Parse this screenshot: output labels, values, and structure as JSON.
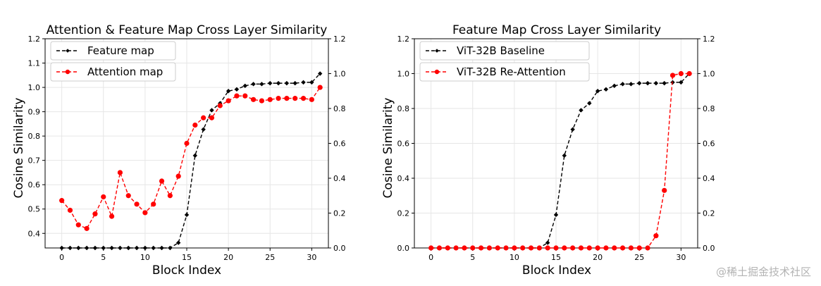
{
  "watermark": "@稀土掘金技术社区",
  "chart_data": [
    {
      "type": "line",
      "title": "Attention & Feature Map Cross Layer Similarity",
      "xlabel": "Block Index",
      "ylabel": "Cosine Similarity",
      "xlim": [
        -2,
        32
      ],
      "xticks": [
        0,
        5,
        10,
        15,
        20,
        25,
        30
      ],
      "ylim": [
        0.34,
        1.2
      ],
      "yticks": [
        "0.4",
        "0.5",
        "0.6",
        "0.7",
        "0.8",
        "0.9",
        "1.0",
        "1.1",
        "1.2"
      ],
      "y2lim": [
        0.0,
        1.2
      ],
      "y2ticks": [
        "0.0",
        "0.2",
        "0.4",
        "0.6",
        "0.8",
        "1.0",
        "1.2"
      ],
      "legend": "upper-left",
      "series": [
        {
          "name": "Feature map",
          "color": "#000000",
          "marker": "diamond",
          "axis": "right",
          "x": [
            0,
            1,
            2,
            3,
            4,
            5,
            6,
            7,
            8,
            9,
            10,
            11,
            12,
            13,
            14,
            15,
            16,
            17,
            18,
            19,
            20,
            21,
            22,
            23,
            24,
            25,
            26,
            27,
            28,
            29,
            30,
            31
          ],
          "values": [
            0,
            0,
            0,
            0,
            0,
            0,
            0,
            0,
            0,
            0,
            0,
            0,
            0,
            0,
            0.03,
            0.19,
            0.53,
            0.68,
            0.79,
            0.83,
            0.9,
            0.91,
            0.93,
            0.94,
            0.94,
            0.945,
            0.945,
            0.945,
            0.945,
            0.95,
            0.95,
            1.0
          ]
        },
        {
          "name": "Attention map",
          "color": "#ff0000",
          "marker": "circle",
          "axis": "left",
          "x": [
            0,
            1,
            2,
            3,
            4,
            5,
            6,
            7,
            8,
            9,
            10,
            11,
            12,
            13,
            14,
            15,
            16,
            17,
            18,
            19,
            20,
            21,
            22,
            23,
            24,
            25,
            26,
            27,
            28,
            29,
            30,
            31
          ],
          "values": [
            0.535,
            0.495,
            0.435,
            0.42,
            0.48,
            0.55,
            0.47,
            0.65,
            0.555,
            0.52,
            0.485,
            0.52,
            0.615,
            0.555,
            0.635,
            0.77,
            0.845,
            0.875,
            0.875,
            0.925,
            0.945,
            0.965,
            0.965,
            0.95,
            0.945,
            0.95,
            0.955,
            0.955,
            0.955,
            0.955,
            0.95,
            1.0
          ]
        }
      ]
    },
    {
      "type": "line",
      "title": "Feature Map Cross Layer Similarity",
      "xlabel": "Block Index",
      "ylabel": "Cosine Similarity",
      "xlim": [
        -2,
        32
      ],
      "xticks": [
        0,
        5,
        10,
        15,
        20,
        25,
        30
      ],
      "ylim": [
        0.0,
        1.2
      ],
      "yticks": [
        "0.0",
        "0.2",
        "0.4",
        "0.6",
        "0.8",
        "1.0",
        "1.2"
      ],
      "y2lim": [
        0.0,
        1.2
      ],
      "y2ticks": [
        "0.0",
        "0.2",
        "0.4",
        "0.6",
        "0.8",
        "1.0",
        "1.2"
      ],
      "legend": "upper-left",
      "series": [
        {
          "name": "ViT-32B Baseline",
          "color": "#000000",
          "marker": "diamond",
          "axis": "left",
          "x": [
            0,
            1,
            2,
            3,
            4,
            5,
            6,
            7,
            8,
            9,
            10,
            11,
            12,
            13,
            14,
            15,
            16,
            17,
            18,
            19,
            20,
            21,
            22,
            23,
            24,
            25,
            26,
            27,
            28,
            29,
            30,
            31
          ],
          "values": [
            0,
            0,
            0,
            0,
            0,
            0,
            0,
            0,
            0,
            0,
            0,
            0,
            0,
            0,
            0.03,
            0.19,
            0.53,
            0.68,
            0.79,
            0.83,
            0.9,
            0.91,
            0.93,
            0.94,
            0.94,
            0.945,
            0.945,
            0.945,
            0.945,
            0.95,
            0.95,
            1.0
          ]
        },
        {
          "name": "ViT-32B Re-Attention",
          "color": "#ff0000",
          "marker": "circle",
          "axis": "left",
          "x": [
            0,
            1,
            2,
            3,
            4,
            5,
            6,
            7,
            8,
            9,
            10,
            11,
            12,
            13,
            14,
            15,
            16,
            17,
            18,
            19,
            20,
            21,
            22,
            23,
            24,
            25,
            26,
            27,
            28,
            29,
            30,
            31
          ],
          "values": [
            0,
            0,
            0,
            0,
            0,
            0,
            0,
            0,
            0,
            0,
            0,
            0,
            0,
            0,
            0,
            0,
            0,
            0,
            0,
            0,
            0,
            0,
            0,
            0,
            0,
            0,
            0,
            0.07,
            0.33,
            0.99,
            1.0,
            1.0
          ]
        }
      ]
    }
  ]
}
